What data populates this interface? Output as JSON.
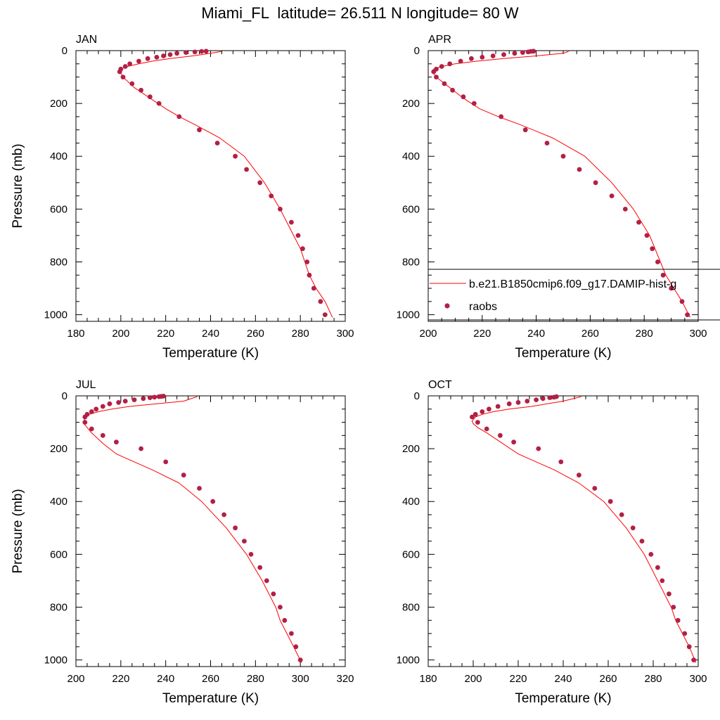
{
  "title": "Miami_FL  latitude= 26.511 N longitude= 80 W",
  "legend": {
    "entries": [
      {
        "label": "b.e21.B1850cmip6.f09_g17.DAMIP-hist-g",
        "kind": "line",
        "color": "#ff0000"
      },
      {
        "label": "raobs",
        "kind": "marker",
        "color": "#b22046"
      }
    ]
  },
  "chart_data": [
    {
      "type": "line",
      "title": "JAN",
      "xlabel": "Temperature (K)",
      "ylabel": "Pressure (mb)",
      "xlim": [
        180,
        300
      ],
      "ylim": [
        1025,
        0
      ],
      "xticks": [
        180,
        200,
        220,
        240,
        260,
        280,
        300
      ],
      "yticks": [
        0,
        200,
        400,
        600,
        800,
        1000
      ],
      "series": [
        {
          "kind": "line",
          "color": "#ff0000",
          "x": [
            294.3,
            291,
            287,
            284,
            282,
            280,
            277,
            271,
            264,
            255,
            244,
            233,
            226,
            220,
            213,
            206,
            201,
            199.6,
            200,
            203,
            208,
            214,
            222,
            232,
            240,
            245
          ],
          "y": [
            1010,
            950,
            900,
            850,
            800,
            750,
            700,
            600,
            500,
            400,
            330,
            280,
            250,
            220,
            180,
            140,
            100,
            80,
            70,
            60,
            50,
            40,
            30,
            20,
            10,
            3
          ]
        },
        {
          "kind": "scatter",
          "color": "#b22046",
          "x": [
            291,
            289,
            286,
            284,
            283,
            281,
            279,
            276,
            271,
            267,
            262,
            256,
            251,
            243,
            235,
            226,
            217,
            213,
            209,
            205,
            201,
            199.5,
            200,
            202,
            204,
            208,
            212,
            216,
            219,
            222,
            225,
            229,
            233,
            236,
            238
          ],
          "y": [
            1000,
            950,
            900,
            850,
            800,
            750,
            700,
            650,
            600,
            550,
            500,
            450,
            400,
            350,
            300,
            250,
            200,
            175,
            150,
            125,
            100,
            80,
            70,
            60,
            50,
            40,
            30,
            25,
            20,
            15,
            10,
            7,
            5,
            3,
            2
          ]
        }
      ]
    },
    {
      "type": "line",
      "title": "APR",
      "xlabel": "Temperature (K)",
      "ylabel": "",
      "xlim": [
        200,
        300
      ],
      "ylim": [
        1025,
        0
      ],
      "xticks": [
        200,
        220,
        240,
        260,
        280,
        300
      ],
      "yticks": [
        0,
        200,
        400,
        600,
        800,
        1000
      ],
      "series": [
        {
          "kind": "line",
          "color": "#ff0000",
          "x": [
            297,
            294,
            291,
            288,
            286,
            284,
            282,
            276,
            268,
            258,
            246,
            234,
            226,
            219,
            213,
            208,
            203,
            201.5,
            202,
            205,
            210,
            218,
            228,
            240,
            250,
            252
          ],
          "y": [
            1010,
            950,
            900,
            850,
            800,
            750,
            700,
            600,
            500,
            400,
            330,
            280,
            250,
            220,
            180,
            140,
            100,
            80,
            70,
            60,
            50,
            40,
            30,
            20,
            10,
            3
          ]
        },
        {
          "kind": "scatter",
          "color": "#b22046",
          "x": [
            296,
            294,
            290,
            287,
            285,
            283,
            281,
            278,
            273,
            268,
            262,
            256,
            250,
            244,
            236,
            227,
            217,
            213,
            209,
            206,
            203,
            202,
            203,
            205,
            208,
            212,
            216,
            220,
            224,
            228,
            232,
            235,
            237,
            238,
            239
          ],
          "y": [
            1000,
            950,
            900,
            850,
            800,
            750,
            700,
            650,
            600,
            550,
            500,
            450,
            400,
            350,
            300,
            250,
            200,
            175,
            150,
            125,
            100,
            80,
            70,
            60,
            50,
            40,
            30,
            25,
            20,
            15,
            10,
            7,
            5,
            3,
            2
          ]
        }
      ]
    },
    {
      "type": "line",
      "title": "JUL",
      "xlabel": "Temperature (K)",
      "ylabel": "Pressure (mb)",
      "xlim": [
        200,
        320
      ],
      "ylim": [
        1025,
        0
      ],
      "xticks": [
        200,
        220,
        240,
        260,
        280,
        300,
        320
      ],
      "yticks": [
        0,
        200,
        400,
        600,
        800,
        1000
      ],
      "series": [
        {
          "kind": "line",
          "color": "#ff0000",
          "x": [
            300.5,
            297,
            294,
            291,
            289,
            286,
            283,
            276,
            267,
            256,
            246,
            234,
            226,
            218,
            212,
            207,
            204,
            203.5,
            204,
            206,
            210,
            216,
            224,
            236,
            248,
            254
          ],
          "y": [
            1010,
            950,
            900,
            850,
            800,
            750,
            700,
            600,
            500,
            400,
            330,
            280,
            250,
            220,
            180,
            140,
            110,
            100,
            80,
            70,
            60,
            50,
            40,
            30,
            20,
            3
          ]
        },
        {
          "kind": "scatter",
          "color": "#b22046",
          "x": [
            300,
            298,
            296,
            293,
            291,
            288,
            285,
            282,
            278,
            275,
            271,
            266,
            261,
            255,
            248,
            240,
            229,
            218,
            212,
            207,
            204,
            204,
            205,
            207,
            209,
            212,
            215,
            219,
            222,
            226,
            230,
            233,
            235,
            237,
            238,
            239
          ],
          "y": [
            1000,
            950,
            900,
            850,
            800,
            750,
            700,
            650,
            600,
            550,
            500,
            450,
            400,
            350,
            300,
            250,
            200,
            175,
            150,
            125,
            100,
            80,
            70,
            60,
            50,
            40,
            30,
            25,
            20,
            15,
            10,
            7,
            5,
            3,
            2,
            1
          ]
        }
      ]
    },
    {
      "type": "line",
      "title": "OCT",
      "xlabel": "Temperature (K)",
      "ylabel": "",
      "xlim": [
        180,
        300
      ],
      "ylim": [
        1025,
        0
      ],
      "xticks": [
        180,
        200,
        220,
        240,
        260,
        280,
        300
      ],
      "yticks": [
        0,
        200,
        400,
        600,
        800,
        1000
      ],
      "series": [
        {
          "kind": "line",
          "color": "#ff0000",
          "x": [
            299,
            296,
            293,
            290,
            288,
            285,
            282,
            276,
            268,
            258,
            247,
            236,
            228,
            220,
            213,
            206,
            202,
            200,
            199.5,
            201,
            204,
            209,
            216,
            226,
            240,
            248
          ],
          "y": [
            1010,
            950,
            900,
            850,
            800,
            750,
            700,
            600,
            500,
            400,
            330,
            280,
            250,
            220,
            180,
            140,
            120,
            105,
            95,
            80,
            70,
            60,
            50,
            40,
            20,
            3
          ]
        },
        {
          "kind": "scatter",
          "color": "#b22046",
          "x": [
            298,
            296,
            294,
            291,
            289,
            287,
            284,
            282,
            279,
            275,
            271,
            266,
            261,
            254,
            247,
            239,
            229,
            218,
            212,
            206,
            202,
            199.5,
            201,
            204,
            207,
            211,
            216,
            220,
            224,
            228,
            231,
            234,
            236,
            237
          ],
          "y": [
            1000,
            950,
            900,
            850,
            800,
            750,
            700,
            650,
            600,
            550,
            500,
            450,
            400,
            350,
            300,
            250,
            200,
            175,
            150,
            125,
            100,
            80,
            70,
            60,
            50,
            40,
            30,
            25,
            20,
            15,
            10,
            7,
            5,
            3
          ]
        }
      ]
    }
  ]
}
